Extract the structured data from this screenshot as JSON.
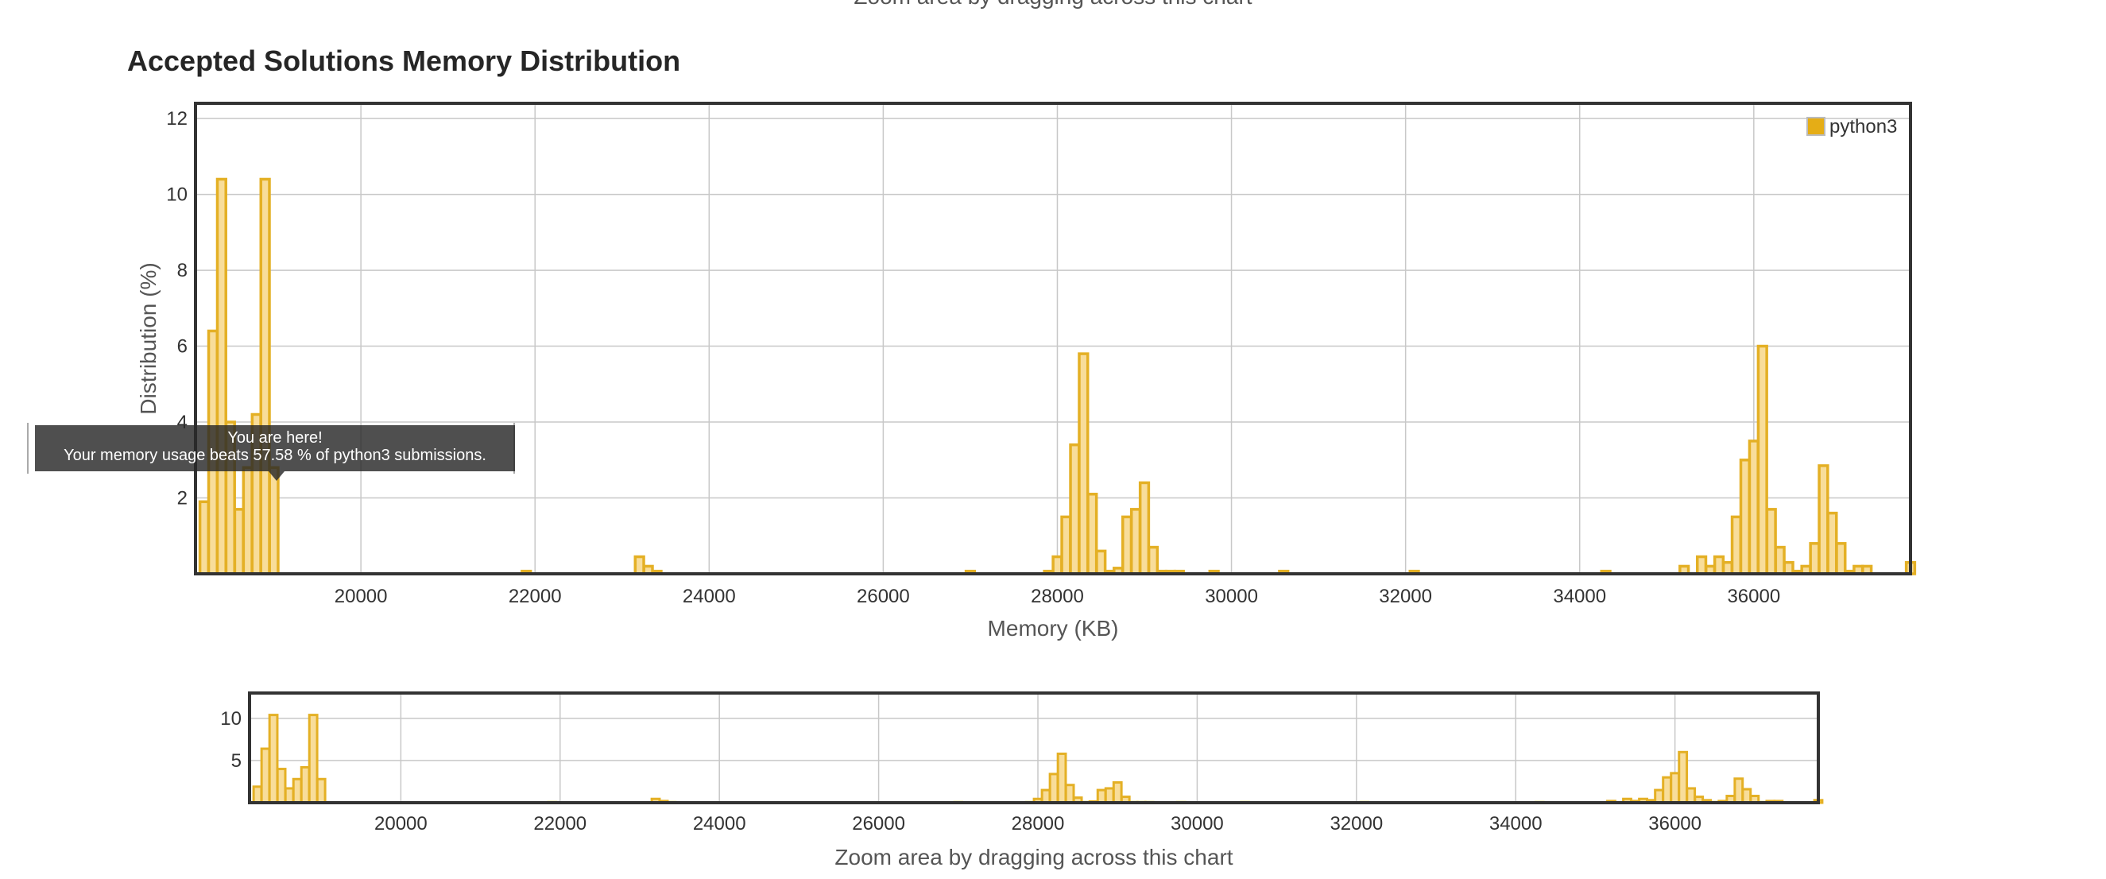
{
  "page": {
    "top_caption": "Zoom area by dragging across this chart",
    "section_title": "Accepted Solutions Memory Distribution",
    "tooltip": {
      "line1": "You are here!",
      "line2": "Your memory usage beats 57.58 % of python3 submissions."
    }
  },
  "colors": {
    "bar_fill": "#f8dd9a",
    "bar_stroke": "#e4b025",
    "legend_swatch": "#e5ad16",
    "grid": "#c8c8c8",
    "frame": "#333333"
  },
  "chart_data": [
    {
      "type": "bar",
      "xlabel": "Memory (KB)",
      "ylabel": "Distribution (%)",
      "xlim": [
        18100,
        37800
      ],
      "ylim": [
        0,
        12.4
      ],
      "x_ticks": [
        "20000",
        "22000",
        "24000",
        "26000",
        "28000",
        "30000",
        "32000",
        "34000",
        "36000"
      ],
      "y_ticks": [
        "2",
        "4",
        "6",
        "8",
        "10",
        "12"
      ],
      "legend": [
        "python3"
      ],
      "legend_position": "top-right",
      "grid": true,
      "series": [
        {
          "name": "python3",
          "x": [
            18200,
            18300,
            18400,
            18500,
            18600,
            18700,
            18800,
            18900,
            19000,
            21900,
            23200,
            23300,
            23400,
            27000,
            27900,
            28000,
            28100,
            28200,
            28300,
            28400,
            28500,
            28600,
            28700,
            28800,
            28900,
            29000,
            29100,
            29200,
            29300,
            29400,
            29800,
            30600,
            32100,
            34300,
            35200,
            35400,
            35500,
            35600,
            35700,
            35800,
            35900,
            36000,
            36100,
            36200,
            36300,
            36400,
            36500,
            36600,
            36700,
            36800,
            36900,
            37000,
            37100,
            37200,
            37300,
            37800
          ],
          "values": [
            1.9,
            6.4,
            10.4,
            4.0,
            1.7,
            2.8,
            4.2,
            10.4,
            2.8,
            0.07,
            0.45,
            0.2,
            0.07,
            0.07,
            0.07,
            0.45,
            1.5,
            3.4,
            5.8,
            2.1,
            0.6,
            0.07,
            0.15,
            1.5,
            1.7,
            2.4,
            0.7,
            0.07,
            0.07,
            0.07,
            0.07,
            0.07,
            0.07,
            0.07,
            0.2,
            0.45,
            0.2,
            0.45,
            0.3,
            1.5,
            3.0,
            3.5,
            6.0,
            1.7,
            0.7,
            0.3,
            0.07,
            0.2,
            0.8,
            2.85,
            1.6,
            0.8,
            0.07,
            0.2,
            0.2,
            0.3
          ]
        }
      ]
    },
    {
      "type": "bar",
      "xlabel": "Zoom area by dragging across this chart",
      "ylabel": "",
      "xlim": [
        18100,
        37800
      ],
      "ylim": [
        0,
        13
      ],
      "x_ticks": [
        "20000",
        "22000",
        "24000",
        "26000",
        "28000",
        "30000",
        "32000",
        "34000",
        "36000"
      ],
      "y_ticks": [
        "5",
        "10"
      ],
      "grid": true,
      "series": [
        {
          "x": [
            18200,
            18300,
            18400,
            18500,
            18600,
            18700,
            18800,
            18900,
            19000,
            21900,
            23200,
            23300,
            23400,
            27000,
            27900,
            28000,
            28100,
            28200,
            28300,
            28400,
            28500,
            28600,
            28700,
            28800,
            28900,
            29000,
            29100,
            29200,
            29300,
            29400,
            29800,
            30600,
            32100,
            34300,
            35200,
            35400,
            35500,
            35600,
            35700,
            35800,
            35900,
            36000,
            36100,
            36200,
            36300,
            36400,
            36500,
            36600,
            36700,
            36800,
            36900,
            37000,
            37100,
            37200,
            37300,
            37800
          ],
          "values": [
            1.9,
            6.4,
            10.4,
            4.0,
            1.7,
            2.8,
            4.2,
            10.4,
            2.8,
            0.07,
            0.45,
            0.2,
            0.07,
            0.07,
            0.07,
            0.45,
            1.5,
            3.4,
            5.8,
            2.1,
            0.6,
            0.07,
            0.15,
            1.5,
            1.7,
            2.4,
            0.7,
            0.07,
            0.07,
            0.07,
            0.07,
            0.07,
            0.07,
            0.07,
            0.2,
            0.45,
            0.2,
            0.45,
            0.3,
            1.5,
            3.0,
            3.5,
            6.0,
            1.7,
            0.7,
            0.3,
            0.07,
            0.2,
            0.8,
            2.85,
            1.6,
            0.8,
            0.07,
            0.2,
            0.2,
            0.3
          ]
        }
      ]
    }
  ]
}
